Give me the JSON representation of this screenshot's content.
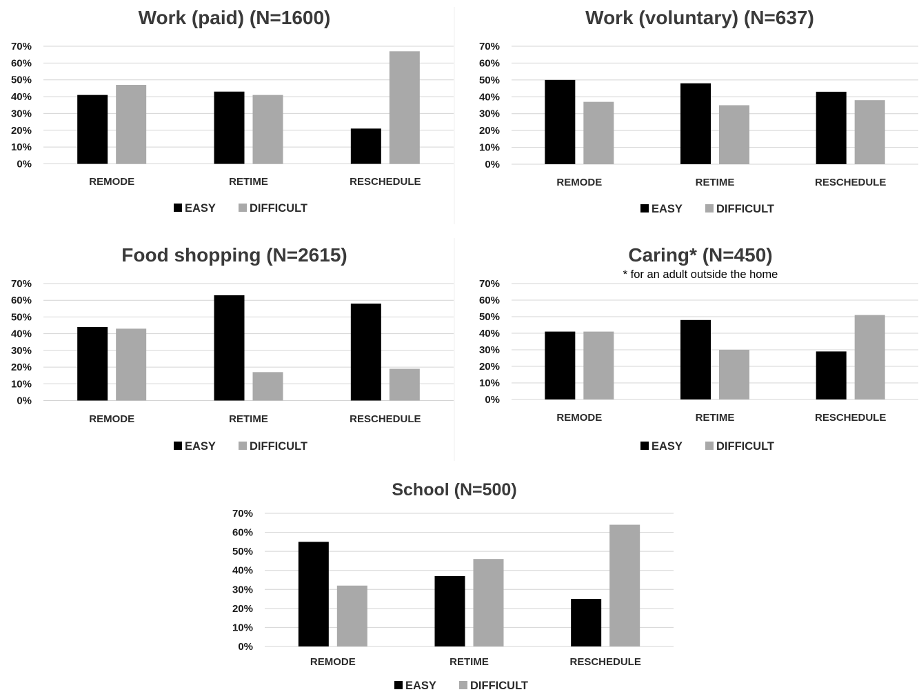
{
  "colors": {
    "easy": "#000000",
    "difficult": "#a9a9a9",
    "grid": "#d4d4d4"
  },
  "chart_data": [
    {
      "type": "bar",
      "title": "Work (paid) (N=1600)",
      "subtitle": "",
      "categories": [
        "REMODE",
        "RETIME",
        "RESCHEDULE"
      ],
      "y_tick_labels": [
        "0%",
        "10%",
        "20%",
        "30%",
        "40%",
        "50%",
        "60%",
        "70%"
      ],
      "ylim": [
        0,
        70
      ],
      "grid": true,
      "legend_position": "bottom",
      "series": [
        {
          "name": "EASY",
          "values": [
            41,
            43,
            21
          ]
        },
        {
          "name": "DIFFICULT",
          "values": [
            47,
            41,
            67
          ]
        }
      ]
    },
    {
      "type": "bar",
      "title": "Work (voluntary) (N=637)",
      "subtitle": "",
      "categories": [
        "REMODE",
        "RETIME",
        "RESCHEDULE"
      ],
      "y_tick_labels": [
        "0%",
        "10%",
        "20%",
        "30%",
        "40%",
        "50%",
        "60%",
        "70%"
      ],
      "ylim": [
        0,
        70
      ],
      "grid": true,
      "legend_position": "bottom",
      "series": [
        {
          "name": "EASY",
          "values": [
            50,
            48,
            43
          ]
        },
        {
          "name": "DIFFICULT",
          "values": [
            37,
            35,
            38
          ]
        }
      ]
    },
    {
      "type": "bar",
      "title": "Food shopping (N=2615)",
      "subtitle": "",
      "categories": [
        "REMODE",
        "RETIME",
        "RESCHEDULE"
      ],
      "y_tick_labels": [
        "0%",
        "10%",
        "20%",
        "30%",
        "40%",
        "50%",
        "60%",
        "70%"
      ],
      "ylim": [
        0,
        70
      ],
      "grid": true,
      "legend_position": "bottom",
      "series": [
        {
          "name": "EASY",
          "values": [
            44,
            63,
            58
          ]
        },
        {
          "name": "DIFFICULT",
          "values": [
            43,
            17,
            19
          ]
        }
      ]
    },
    {
      "type": "bar",
      "title": "Caring* (N=450)",
      "subtitle": "* for an adult outside the home",
      "categories": [
        "REMODE",
        "RETIME",
        "RESCHEDULE"
      ],
      "y_tick_labels": [
        "0%",
        "10%",
        "20%",
        "30%",
        "40%",
        "50%",
        "60%",
        "70%"
      ],
      "ylim": [
        0,
        70
      ],
      "grid": true,
      "legend_position": "bottom",
      "series": [
        {
          "name": "EASY",
          "values": [
            41,
            48,
            29
          ]
        },
        {
          "name": "DIFFICULT",
          "values": [
            41,
            30,
            51
          ]
        }
      ]
    },
    {
      "type": "bar",
      "title": "School  (N=500)",
      "subtitle": "",
      "categories": [
        "REMODE",
        "RETIME",
        "RESCHEDULE"
      ],
      "y_tick_labels": [
        "0%",
        "10%",
        "20%",
        "30%",
        "40%",
        "50%",
        "60%",
        "70%"
      ],
      "ylim": [
        0,
        70
      ],
      "grid": true,
      "legend_position": "bottom",
      "series": [
        {
          "name": "EASY",
          "values": [
            55,
            37,
            25
          ]
        },
        {
          "name": "DIFFICULT",
          "values": [
            32,
            46,
            64
          ]
        }
      ]
    }
  ]
}
